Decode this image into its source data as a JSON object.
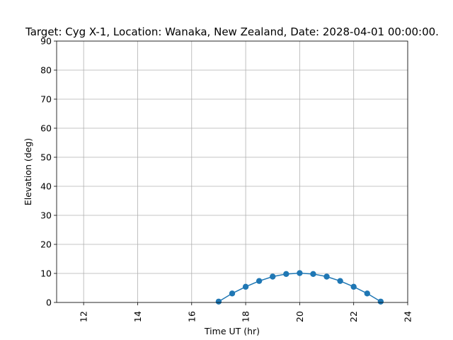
{
  "chart_data": {
    "type": "line",
    "title": "Target: Cyg X-1,  Location: Wanaka, New Zealand, Date: 2028-04-01 00:00:00.",
    "xlabel": "Time UT (hr)",
    "ylabel": "Elevation (deg)",
    "xlim": [
      11,
      24
    ],
    "ylim": [
      0,
      90
    ],
    "xticks": [
      12,
      14,
      16,
      18,
      20,
      22,
      24
    ],
    "yticks": [
      0,
      10,
      20,
      30,
      40,
      50,
      60,
      70,
      80,
      90
    ],
    "grid": true,
    "series": [
      {
        "color": "#1f77b4",
        "x": [
          17,
          17.5,
          18,
          18.5,
          19,
          19.5,
          20,
          20.5,
          21,
          21.5,
          22,
          22.5,
          23
        ],
        "y": [
          0.3,
          3.1,
          5.4,
          7.4,
          8.9,
          9.8,
          10.1,
          9.8,
          8.9,
          7.4,
          5.4,
          3.1,
          0.3
        ]
      }
    ]
  }
}
